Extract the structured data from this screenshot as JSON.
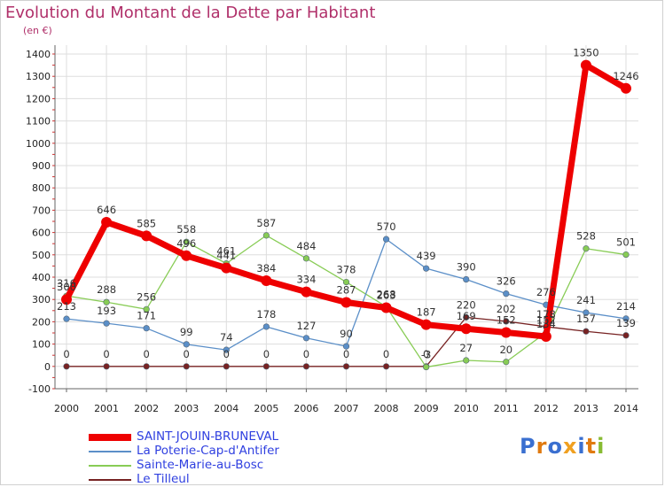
{
  "header": {
    "title": "Evolution du Montant de la Dette par Habitant",
    "subtitle": "(en €)"
  },
  "logo": {
    "text": "Proxiti"
  },
  "colors": {
    "title": "#b0306a",
    "legend_text": "#3040e0",
    "grid": "#dddddd",
    "axis": "#666666"
  },
  "chart_data": {
    "type": "line",
    "title": "Evolution du Montant de la Dette par Habitant",
    "subtitle": "(en €)",
    "xlabel": "",
    "ylabel": "",
    "x": [
      "2000",
      "2001",
      "2002",
      "2003",
      "2004",
      "2005",
      "2006",
      "2007",
      "2008",
      "2009",
      "2010",
      "2011",
      "2012",
      "2013",
      "2014"
    ],
    "ylim": [
      -100,
      1400
    ],
    "yticks": [
      -100,
      0,
      100,
      200,
      300,
      400,
      500,
      600,
      700,
      800,
      900,
      1000,
      1100,
      1200,
      1300,
      1400
    ],
    "grid": true,
    "legend_position": "bottom-left",
    "series": [
      {
        "name": "SAINT-JOUIN-BRUNEVAL",
        "color": "#ee0000",
        "values": [
          300,
          646,
          585,
          496,
          441,
          384,
          334,
          287,
          263,
          187,
          169,
          152,
          134,
          1350,
          1246
        ],
        "labels": [
          "300",
          "646",
          "585",
          "496",
          "441",
          "384",
          "334",
          "287",
          "263",
          "187",
          "169",
          "152",
          "134",
          "1350",
          "1246"
        ]
      },
      {
        "name": "La Poterie-Cap-d'Antifer",
        "color": "#5b8fc8",
        "values": [
          213,
          193,
          171,
          99,
          74,
          178,
          127,
          90,
          570,
          439,
          390,
          326,
          276,
          241,
          214
        ],
        "labels": [
          "213",
          "193",
          "171",
          "99",
          "74",
          "178",
          "127",
          "90",
          "570",
          "439",
          "390",
          "326",
          "276",
          "241",
          "214"
        ]
      },
      {
        "name": "Sainte-Marie-au-Bosc",
        "color": "#88cc55",
        "values": [
          316,
          288,
          256,
          558,
          461,
          587,
          484,
          378,
          268,
          -3,
          27,
          20,
          152,
          528,
          501
        ],
        "labels": [
          "316",
          "288",
          "256",
          "558",
          "461",
          "587",
          "484",
          "378",
          "268",
          "-3",
          "27",
          "20",
          "152",
          "528",
          "501"
        ]
      },
      {
        "name": "Le Tilleul",
        "color": "#772222",
        "values": [
          0,
          0,
          0,
          0,
          0,
          0,
          0,
          0,
          0,
          0,
          220,
          202,
          178,
          157,
          139
        ],
        "labels": [
          "0",
          "0",
          "0",
          "0",
          "0",
          "0",
          "0",
          "0",
          "0",
          "0",
          "220",
          "202",
          "178",
          "157",
          "139"
        ]
      }
    ]
  }
}
